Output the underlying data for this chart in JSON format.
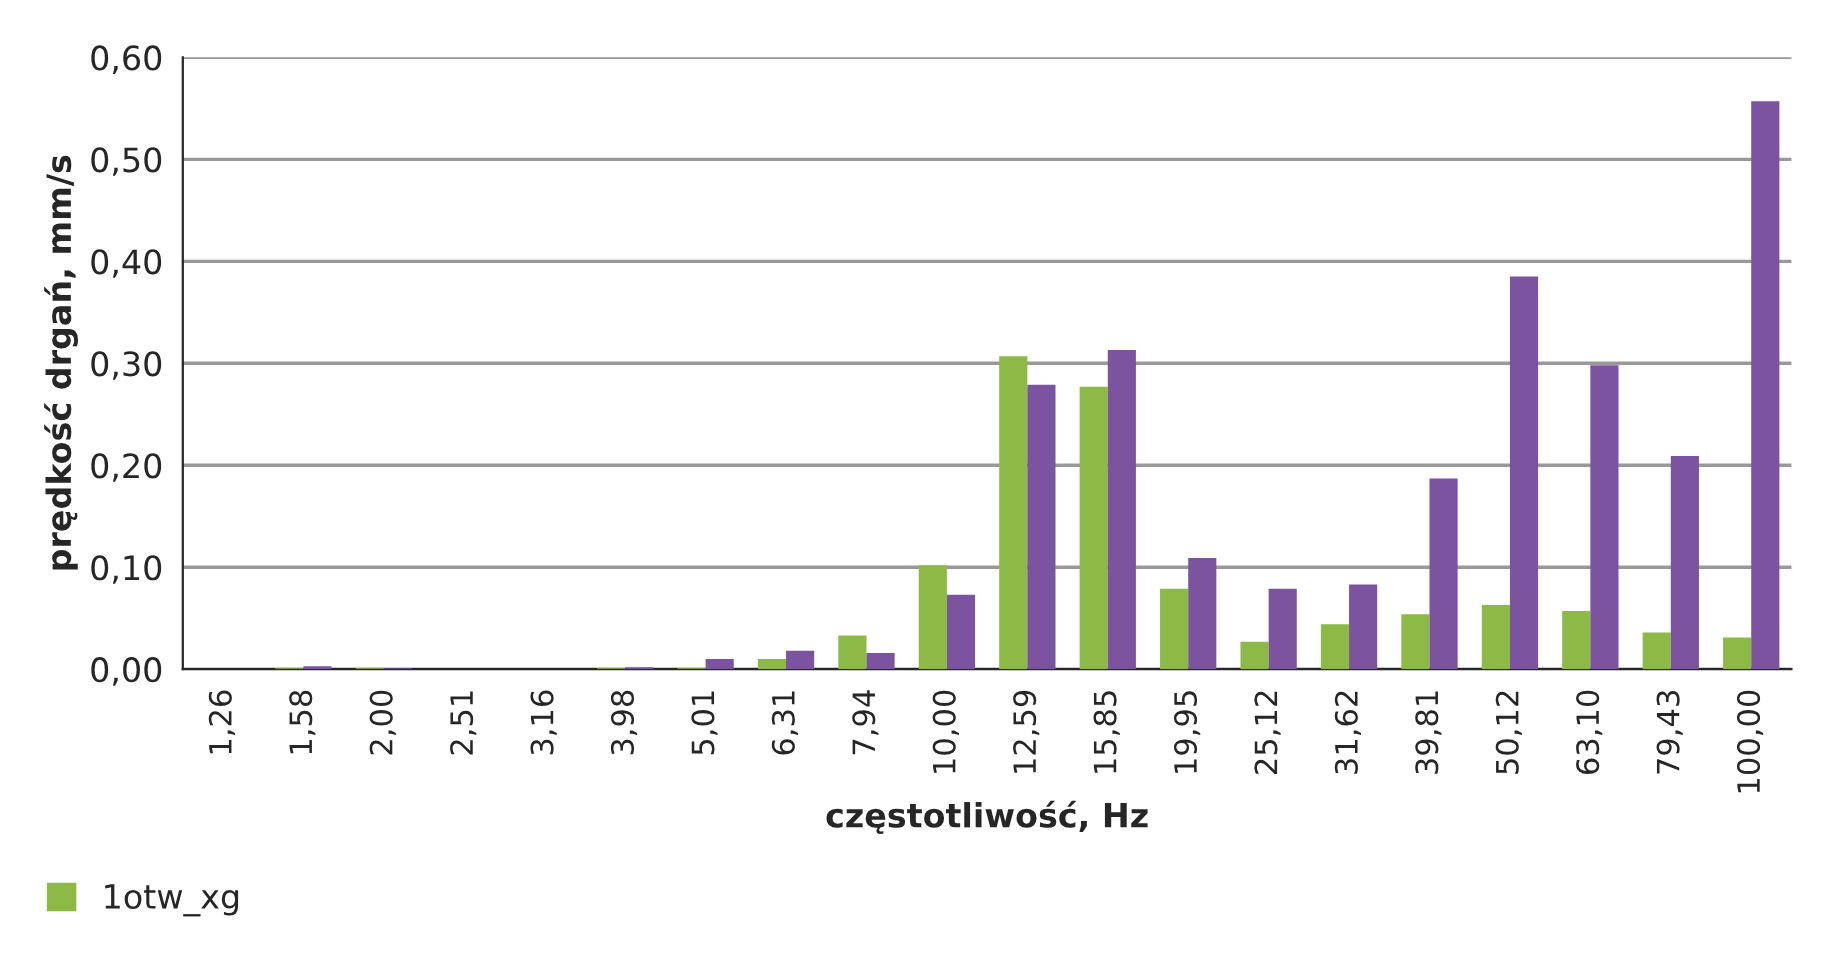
{
  "chart_data": {
    "type": "bar",
    "xlabel": "częstotliwość, Hz",
    "ylabel": "prędkość drgań, mm/s",
    "categories": [
      "1,26",
      "1,58",
      "2,00",
      "2,51",
      "3,16",
      "3,98",
      "5,01",
      "6,31",
      "7,94",
      "10,00",
      "12,59",
      "15,85",
      "19,95",
      "25,12",
      "31,62",
      "39,81",
      "50,12",
      "63,10",
      "79,43",
      "100,00"
    ],
    "series": [
      {
        "name": "1otw_xg",
        "color": "#8db946",
        "values": [
          0,
          0.001,
          0.001,
          0,
          0,
          0.001,
          0.001,
          0.01,
          0.033,
          0.102,
          0.307,
          0.277,
          0.079,
          0.027,
          0.044,
          0.054,
          0.063,
          0.057,
          0.036,
          0.031
        ]
      },
      {
        "color": "#7b539e",
        "values": [
          0,
          0.003,
          0.001,
          0,
          0,
          0.002,
          0.01,
          0.018,
          0.016,
          0.073,
          0.279,
          0.313,
          0.109,
          0.079,
          0.083,
          0.187,
          0.385,
          0.298,
          0.209,
          0.557
        ]
      }
    ],
    "ylim": [
      0,
      0.6
    ],
    "yticks": [
      {
        "value": 0,
        "label": "0,00"
      },
      {
        "value": 0.1,
        "label": "0,10"
      },
      {
        "value": 0.2,
        "label": "0,20"
      },
      {
        "value": 0.3,
        "label": "0,30"
      },
      {
        "value": 0.4,
        "label": "0,40"
      },
      {
        "value": 0.5,
        "label": "0,50"
      },
      {
        "value": 0.6,
        "label": "0,60"
      }
    ],
    "grid": "y",
    "legend": "bottom left"
  }
}
